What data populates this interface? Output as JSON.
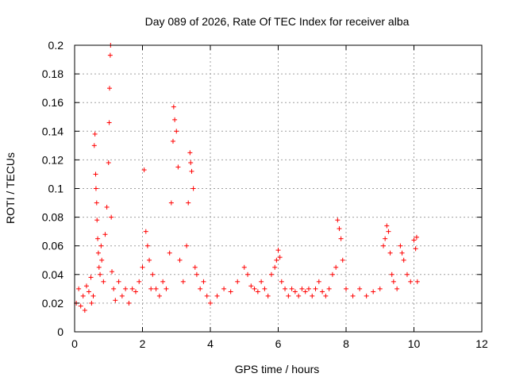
{
  "chart_data": {
    "type": "scatter",
    "title": "Day 089 of 2026, Rate Of TEC Index for receiver alba",
    "xlabel": "GPS time / hours",
    "ylabel": "ROTI / TECUs",
    "xlim": [
      0,
      12
    ],
    "ylim": [
      0,
      0.2
    ],
    "x_ticks": [
      0,
      2,
      4,
      6,
      8,
      10,
      12
    ],
    "x_tick_labels": [
      "0",
      "2",
      "4",
      "6",
      "8",
      "10",
      "12"
    ],
    "y_ticks": [
      0,
      0.02,
      0.04,
      0.06,
      0.08,
      0.1,
      0.12,
      0.14,
      0.16,
      0.18,
      0.2
    ],
    "y_tick_labels": [
      "0",
      "0.02",
      "0.04",
      "0.06",
      "0.08",
      "0.1",
      "0.12",
      "0.14",
      "0.16",
      "0.18",
      "0.2"
    ],
    "grid": true,
    "marker": "+",
    "marker_color": "#ff0000",
    "series": [
      {
        "x": [
          0.05,
          0.12,
          0.18,
          0.25,
          0.3,
          0.35,
          0.42,
          0.48,
          0.5,
          0.55,
          0.58,
          0.6,
          0.62,
          0.63,
          0.65,
          0.66,
          0.68,
          0.7,
          0.72,
          0.75,
          0.78,
          0.8,
          0.85,
          0.9,
          0.95,
          1.0,
          1.02,
          1.03,
          1.05,
          1.06,
          1.08,
          1.1,
          1.15,
          1.2,
          1.3,
          1.4,
          1.5,
          1.6,
          1.7,
          1.8,
          1.9,
          2.0,
          2.05,
          2.1,
          2.15,
          2.2,
          2.25,
          2.3,
          2.4,
          2.5,
          2.6,
          2.7,
          2.8,
          2.85,
          2.9,
          2.92,
          2.95,
          3.0,
          3.05,
          3.1,
          3.2,
          3.3,
          3.35,
          3.4,
          3.42,
          3.45,
          3.5,
          3.55,
          3.6,
          3.7,
          3.8,
          3.9,
          4.0,
          4.2,
          4.4,
          4.6,
          4.8,
          5.0,
          5.1,
          5.2,
          5.3,
          5.4,
          5.5,
          5.6,
          5.7,
          5.8,
          5.9,
          5.95,
          6.0,
          6.05,
          6.1,
          6.2,
          6.3,
          6.4,
          6.5,
          6.6,
          6.7,
          6.8,
          6.9,
          7.0,
          7.1,
          7.2,
          7.3,
          7.4,
          7.5,
          7.6,
          7.7,
          7.75,
          7.8,
          7.85,
          7.9,
          8.0,
          8.2,
          8.4,
          8.6,
          8.8,
          9.0,
          9.1,
          9.15,
          9.2,
          9.25,
          9.3,
          9.35,
          9.4,
          9.5,
          9.6,
          9.65,
          9.7,
          9.8,
          9.9,
          10.0,
          10.05,
          10.08,
          10.1
        ],
        "y": [
          0.02,
          0.03,
          0.018,
          0.025,
          0.015,
          0.032,
          0.028,
          0.038,
          0.02,
          0.025,
          0.13,
          0.138,
          0.11,
          0.1,
          0.09,
          0.078,
          0.065,
          0.055,
          0.045,
          0.04,
          0.06,
          0.05,
          0.035,
          0.068,
          0.087,
          0.118,
          0.146,
          0.17,
          0.193,
          0.2,
          0.08,
          0.042,
          0.03,
          0.022,
          0.035,
          0.025,
          0.03,
          0.02,
          0.03,
          0.028,
          0.035,
          0.045,
          0.113,
          0.07,
          0.06,
          0.05,
          0.03,
          0.04,
          0.03,
          0.025,
          0.035,
          0.03,
          0.055,
          0.09,
          0.133,
          0.157,
          0.148,
          0.14,
          0.115,
          0.05,
          0.035,
          0.06,
          0.09,
          0.125,
          0.118,
          0.112,
          0.1,
          0.045,
          0.04,
          0.03,
          0.035,
          0.025,
          0.02,
          0.025,
          0.03,
          0.028,
          0.035,
          0.045,
          0.04,
          0.032,
          0.03,
          0.028,
          0.035,
          0.03,
          0.025,
          0.04,
          0.045,
          0.05,
          0.057,
          0.052,
          0.035,
          0.03,
          0.025,
          0.03,
          0.028,
          0.025,
          0.03,
          0.028,
          0.03,
          0.025,
          0.03,
          0.035,
          0.028,
          0.025,
          0.03,
          0.04,
          0.045,
          0.078,
          0.072,
          0.065,
          0.05,
          0.03,
          0.025,
          0.03,
          0.025,
          0.028,
          0.03,
          0.06,
          0.065,
          0.074,
          0.07,
          0.055,
          0.04,
          0.035,
          0.03,
          0.06,
          0.055,
          0.05,
          0.04,
          0.035,
          0.064,
          0.058,
          0.066,
          0.035
        ]
      }
    ]
  }
}
